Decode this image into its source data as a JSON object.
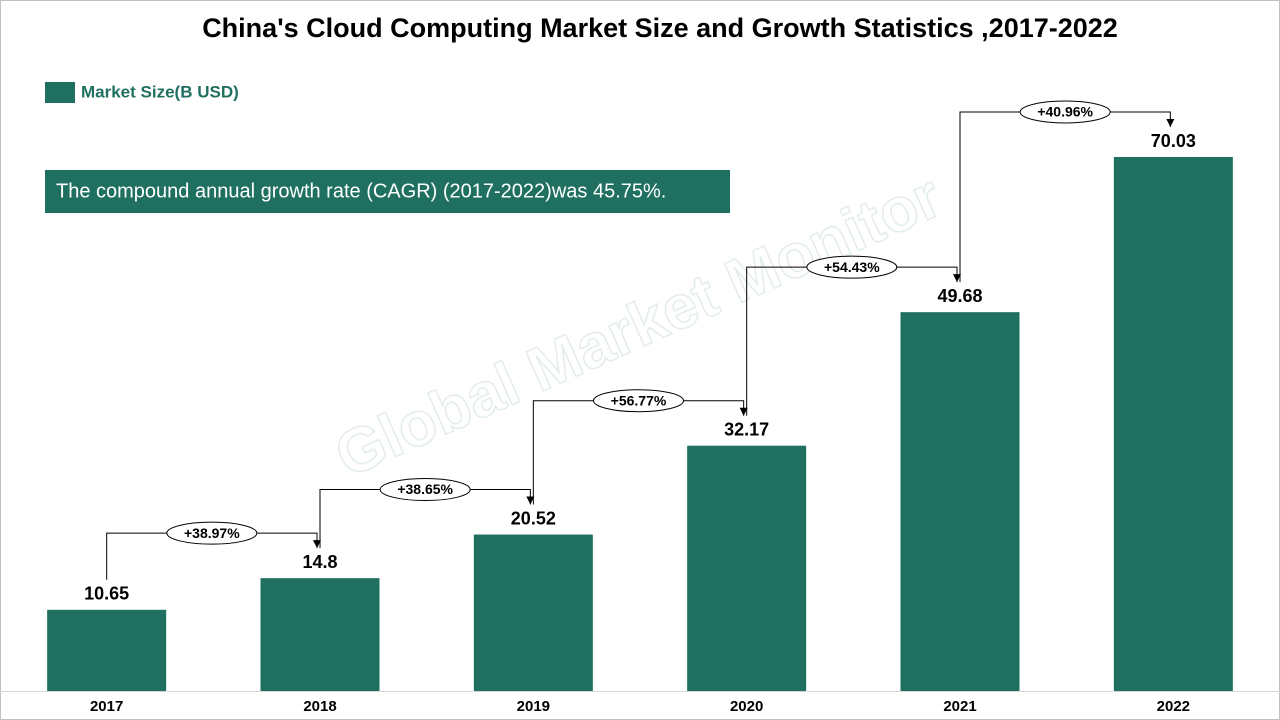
{
  "chart_data": {
    "type": "bar",
    "title": "China's Cloud Computing Market Size and Growth Statistics ,2017-2022",
    "categories": [
      "2017",
      "2018",
      "2019",
      "2020",
      "2021",
      "2022"
    ],
    "series": [
      {
        "name": "Market Size(B USD)",
        "color": "#1f7060",
        "values": [
          10.65,
          14.8,
          20.52,
          32.17,
          49.68,
          70.03
        ]
      }
    ],
    "growth_labels": [
      "+38.97%",
      "+38.65%",
      "+56.77%",
      "+54.43%",
      "+40.96%"
    ],
    "note": "The compound annual growth rate (CAGR) (2017-2022)was 45.75%.",
    "watermark": "Global Market Monitor"
  }
}
